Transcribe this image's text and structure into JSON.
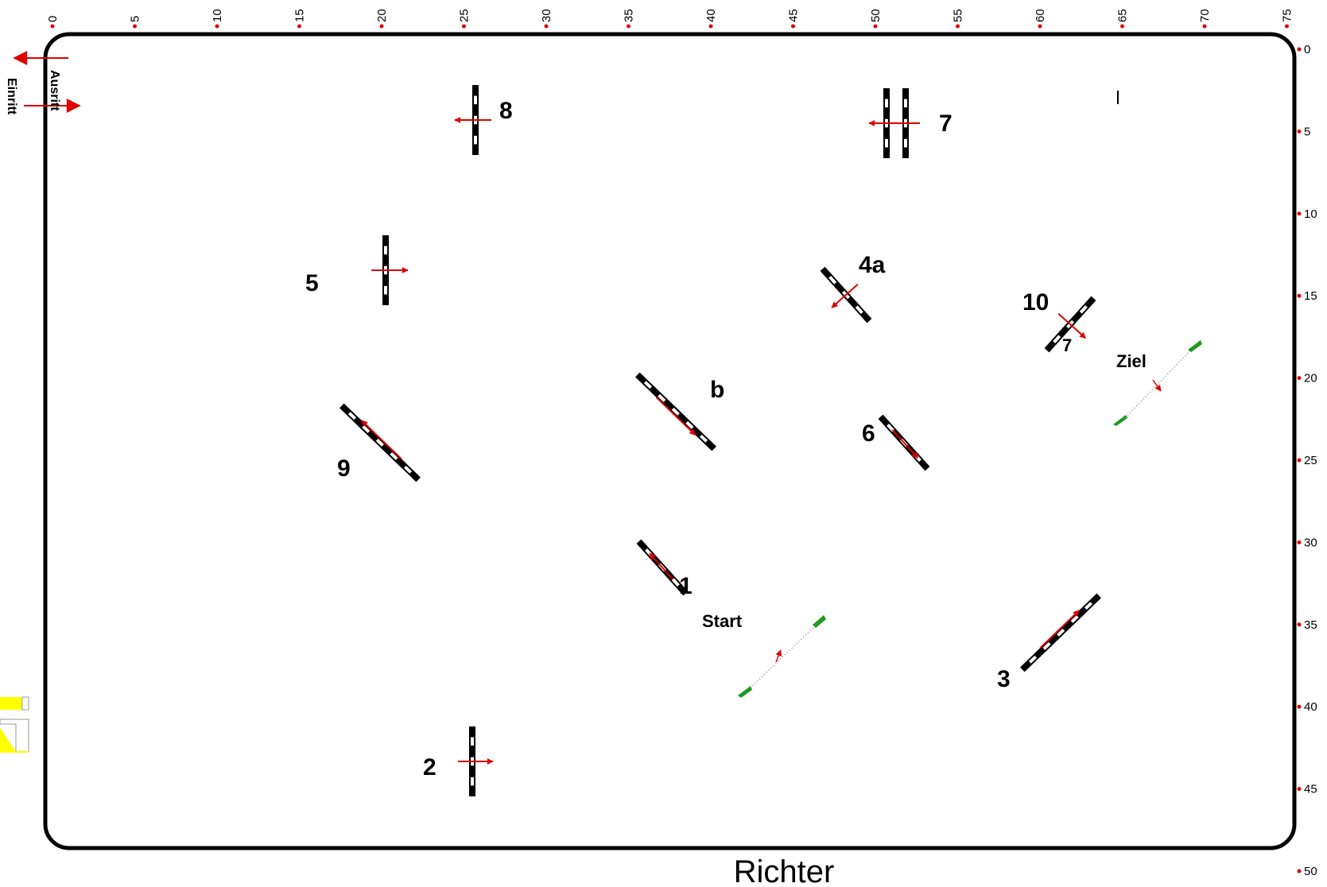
{
  "arena": {
    "top_ticks": [
      "0",
      "5",
      "10",
      "15",
      "20",
      "25",
      "30",
      "35",
      "40",
      "45",
      "50",
      "55",
      "60",
      "65",
      "70",
      "75"
    ],
    "right_ticks": [
      "0",
      "5",
      "10",
      "15",
      "20",
      "25",
      "30",
      "35",
      "40",
      "45",
      "50"
    ]
  },
  "entry": {
    "exit_label": "Ausritt",
    "entry_label": "Einritt"
  },
  "judge_label": "Richter",
  "start": {
    "label": "Start"
  },
  "finish": {
    "label": "Ziel"
  },
  "obstacles": [
    {
      "id": "1",
      "label": "1"
    },
    {
      "id": "2",
      "label": "2"
    },
    {
      "id": "3",
      "label": "3"
    },
    {
      "id": "4a",
      "label": "4a"
    },
    {
      "id": "b",
      "label": "b"
    },
    {
      "id": "5",
      "label": "5"
    },
    {
      "id": "6",
      "label": "6"
    },
    {
      "id": "7",
      "label": "7"
    },
    {
      "id": "8",
      "label": "8"
    },
    {
      "id": "9",
      "label": "9"
    },
    {
      "id": "10",
      "label": "10"
    }
  ],
  "colors": {
    "arena_border": "#000000",
    "tick_marker": "#e00000",
    "direction_arrow": "#e00000",
    "pole_dark": "#000000",
    "pole_light": "#ffffff",
    "flag_green": "#1f9a1f",
    "highlight_yellow": "#ffff00"
  }
}
